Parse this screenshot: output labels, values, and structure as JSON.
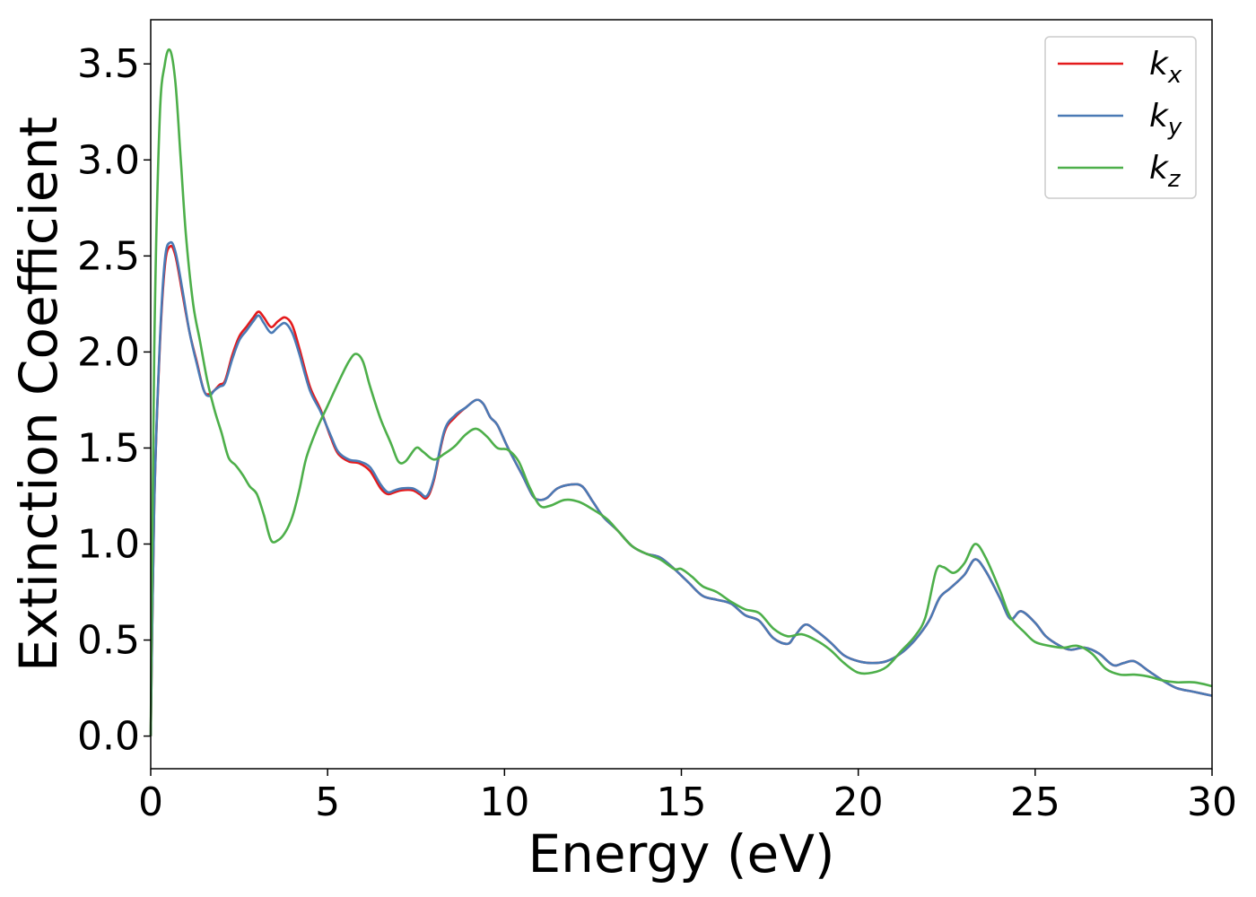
{
  "chart_data": {
    "type": "line",
    "xlabel": "Energy (eV)",
    "ylabel": "Extinction Coefficient",
    "xlim": [
      0,
      30
    ],
    "ylim": [
      -0.17,
      3.73
    ],
    "xticks": [
      "0",
      "5",
      "10",
      "15",
      "20",
      "25",
      "30"
    ],
    "yticks": [
      "0.0",
      "0.5",
      "1.0",
      "1.5",
      "2.0",
      "2.5",
      "3.0",
      "3.5"
    ],
    "grid": false,
    "legend_position": "top-right",
    "series": [
      {
        "name": "k",
        "subscript": "x",
        "color": "#e41a1c",
        "points": [
          [
            0,
            0.0
          ],
          [
            0.1,
            1.2
          ],
          [
            0.25,
            2.0
          ],
          [
            0.4,
            2.45
          ],
          [
            0.55,
            2.55
          ],
          [
            0.7,
            2.5
          ],
          [
            0.9,
            2.3
          ],
          [
            1.1,
            2.1
          ],
          [
            1.3,
            1.95
          ],
          [
            1.5,
            1.8
          ],
          [
            1.65,
            1.78
          ],
          [
            1.8,
            1.8
          ],
          [
            1.95,
            1.83
          ],
          [
            2.1,
            1.85
          ],
          [
            2.3,
            1.98
          ],
          [
            2.5,
            2.08
          ],
          [
            2.7,
            2.13
          ],
          [
            2.9,
            2.18
          ],
          [
            3.05,
            2.21
          ],
          [
            3.2,
            2.18
          ],
          [
            3.4,
            2.13
          ],
          [
            3.6,
            2.16
          ],
          [
            3.8,
            2.18
          ],
          [
            4.0,
            2.14
          ],
          [
            4.2,
            2.02
          ],
          [
            4.5,
            1.82
          ],
          [
            4.8,
            1.7
          ],
          [
            5.1,
            1.55
          ],
          [
            5.3,
            1.47
          ],
          [
            5.6,
            1.43
          ],
          [
            5.9,
            1.42
          ],
          [
            6.2,
            1.38
          ],
          [
            6.5,
            1.29
          ],
          [
            6.7,
            1.26
          ],
          [
            6.9,
            1.27
          ],
          [
            7.1,
            1.28
          ],
          [
            7.4,
            1.28
          ],
          [
            7.6,
            1.26
          ],
          [
            7.8,
            1.24
          ],
          [
            8.0,
            1.33
          ],
          [
            8.3,
            1.58
          ],
          [
            8.6,
            1.66
          ],
          [
            8.9,
            1.71
          ],
          [
            9.2,
            1.75
          ],
          [
            9.4,
            1.73
          ],
          [
            9.6,
            1.66
          ],
          [
            9.8,
            1.62
          ],
          [
            10.1,
            1.5
          ],
          [
            10.5,
            1.36
          ],
          [
            10.8,
            1.25
          ],
          [
            11.0,
            1.23
          ],
          [
            11.2,
            1.24
          ],
          [
            11.5,
            1.29
          ],
          [
            11.9,
            1.31
          ],
          [
            12.2,
            1.3
          ],
          [
            12.5,
            1.22
          ],
          [
            12.8,
            1.14
          ],
          [
            13.2,
            1.07
          ],
          [
            13.6,
            0.99
          ],
          [
            14.0,
            0.95
          ],
          [
            14.4,
            0.93
          ],
          [
            14.8,
            0.87
          ],
          [
            15.2,
            0.8
          ],
          [
            15.6,
            0.73
          ],
          [
            16.0,
            0.71
          ],
          [
            16.4,
            0.69
          ],
          [
            16.8,
            0.63
          ],
          [
            17.2,
            0.6
          ],
          [
            17.6,
            0.51
          ],
          [
            18.0,
            0.48
          ],
          [
            18.2,
            0.52
          ],
          [
            18.5,
            0.58
          ],
          [
            18.8,
            0.55
          ],
          [
            19.2,
            0.49
          ],
          [
            19.6,
            0.42
          ],
          [
            20.0,
            0.39
          ],
          [
            20.4,
            0.38
          ],
          [
            20.8,
            0.39
          ],
          [
            21.2,
            0.43
          ],
          [
            21.6,
            0.5
          ],
          [
            22.0,
            0.6
          ],
          [
            22.3,
            0.72
          ],
          [
            22.6,
            0.77
          ],
          [
            23.0,
            0.84
          ],
          [
            23.3,
            0.92
          ],
          [
            23.6,
            0.86
          ],
          [
            24.0,
            0.72
          ],
          [
            24.3,
            0.61
          ],
          [
            24.6,
            0.65
          ],
          [
            25.0,
            0.59
          ],
          [
            25.3,
            0.52
          ],
          [
            25.7,
            0.47
          ],
          [
            26.0,
            0.45
          ],
          [
            26.4,
            0.46
          ],
          [
            26.8,
            0.43
          ],
          [
            27.2,
            0.37
          ],
          [
            27.5,
            0.38
          ],
          [
            27.8,
            0.39
          ],
          [
            28.2,
            0.34
          ],
          [
            28.6,
            0.29
          ],
          [
            29.0,
            0.25
          ],
          [
            29.5,
            0.23
          ],
          [
            30.0,
            0.21
          ]
        ]
      },
      {
        "name": "k",
        "subscript": "y",
        "color": "#4a7ab5",
        "points": [
          [
            0,
            0.0
          ],
          [
            0.1,
            1.2
          ],
          [
            0.25,
            2.02
          ],
          [
            0.4,
            2.48
          ],
          [
            0.55,
            2.57
          ],
          [
            0.7,
            2.52
          ],
          [
            0.9,
            2.32
          ],
          [
            1.1,
            2.1
          ],
          [
            1.3,
            1.94
          ],
          [
            1.5,
            1.8
          ],
          [
            1.65,
            1.77
          ],
          [
            1.8,
            1.8
          ],
          [
            1.95,
            1.82
          ],
          [
            2.1,
            1.84
          ],
          [
            2.3,
            1.96
          ],
          [
            2.5,
            2.06
          ],
          [
            2.7,
            2.11
          ],
          [
            2.9,
            2.16
          ],
          [
            3.05,
            2.19
          ],
          [
            3.2,
            2.15
          ],
          [
            3.4,
            2.1
          ],
          [
            3.6,
            2.13
          ],
          [
            3.8,
            2.15
          ],
          [
            4.0,
            2.1
          ],
          [
            4.2,
            1.99
          ],
          [
            4.5,
            1.8
          ],
          [
            4.8,
            1.69
          ],
          [
            5.1,
            1.56
          ],
          [
            5.3,
            1.48
          ],
          [
            5.6,
            1.44
          ],
          [
            5.9,
            1.43
          ],
          [
            6.2,
            1.4
          ],
          [
            6.5,
            1.31
          ],
          [
            6.7,
            1.27
          ],
          [
            6.9,
            1.28
          ],
          [
            7.1,
            1.29
          ],
          [
            7.4,
            1.29
          ],
          [
            7.6,
            1.27
          ],
          [
            7.8,
            1.25
          ],
          [
            8.0,
            1.34
          ],
          [
            8.3,
            1.59
          ],
          [
            8.6,
            1.67
          ],
          [
            8.9,
            1.71
          ],
          [
            9.2,
            1.75
          ],
          [
            9.4,
            1.73
          ],
          [
            9.6,
            1.66
          ],
          [
            9.8,
            1.62
          ],
          [
            10.1,
            1.5
          ],
          [
            10.5,
            1.36
          ],
          [
            10.8,
            1.25
          ],
          [
            11.0,
            1.23
          ],
          [
            11.2,
            1.24
          ],
          [
            11.5,
            1.29
          ],
          [
            11.9,
            1.31
          ],
          [
            12.2,
            1.3
          ],
          [
            12.5,
            1.22
          ],
          [
            12.8,
            1.14
          ],
          [
            13.2,
            1.07
          ],
          [
            13.6,
            0.99
          ],
          [
            14.0,
            0.95
          ],
          [
            14.4,
            0.93
          ],
          [
            14.8,
            0.87
          ],
          [
            15.2,
            0.8
          ],
          [
            15.6,
            0.73
          ],
          [
            16.0,
            0.71
          ],
          [
            16.4,
            0.69
          ],
          [
            16.8,
            0.63
          ],
          [
            17.2,
            0.6
          ],
          [
            17.6,
            0.51
          ],
          [
            18.0,
            0.48
          ],
          [
            18.2,
            0.52
          ],
          [
            18.5,
            0.58
          ],
          [
            18.8,
            0.55
          ],
          [
            19.2,
            0.49
          ],
          [
            19.6,
            0.42
          ],
          [
            20.0,
            0.39
          ],
          [
            20.4,
            0.38
          ],
          [
            20.8,
            0.39
          ],
          [
            21.2,
            0.43
          ],
          [
            21.6,
            0.5
          ],
          [
            22.0,
            0.6
          ],
          [
            22.3,
            0.72
          ],
          [
            22.6,
            0.77
          ],
          [
            23.0,
            0.84
          ],
          [
            23.3,
            0.92
          ],
          [
            23.6,
            0.86
          ],
          [
            24.0,
            0.72
          ],
          [
            24.3,
            0.61
          ],
          [
            24.6,
            0.65
          ],
          [
            25.0,
            0.59
          ],
          [
            25.3,
            0.52
          ],
          [
            25.7,
            0.47
          ],
          [
            26.0,
            0.45
          ],
          [
            26.4,
            0.46
          ],
          [
            26.8,
            0.43
          ],
          [
            27.2,
            0.37
          ],
          [
            27.5,
            0.38
          ],
          [
            27.8,
            0.39
          ],
          [
            28.2,
            0.34
          ],
          [
            28.6,
            0.29
          ],
          [
            29.0,
            0.25
          ],
          [
            29.5,
            0.23
          ],
          [
            30.0,
            0.21
          ]
        ]
      },
      {
        "name": "k",
        "subscript": "z",
        "color": "#4daf4a",
        "points": [
          [
            0,
            0.0
          ],
          [
            0.1,
            2.0
          ],
          [
            0.25,
            3.2
          ],
          [
            0.4,
            3.5
          ],
          [
            0.55,
            3.57
          ],
          [
            0.7,
            3.4
          ],
          [
            0.85,
            3.0
          ],
          [
            1.0,
            2.6
          ],
          [
            1.2,
            2.25
          ],
          [
            1.4,
            2.05
          ],
          [
            1.6,
            1.85
          ],
          [
            1.8,
            1.7
          ],
          [
            2.0,
            1.58
          ],
          [
            2.2,
            1.45
          ],
          [
            2.4,
            1.41
          ],
          [
            2.6,
            1.36
          ],
          [
            2.8,
            1.3
          ],
          [
            3.0,
            1.26
          ],
          [
            3.2,
            1.15
          ],
          [
            3.4,
            1.02
          ],
          [
            3.6,
            1.02
          ],
          [
            3.8,
            1.06
          ],
          [
            4.0,
            1.14
          ],
          [
            4.2,
            1.28
          ],
          [
            4.4,
            1.45
          ],
          [
            4.7,
            1.6
          ],
          [
            5.0,
            1.72
          ],
          [
            5.3,
            1.84
          ],
          [
            5.6,
            1.95
          ],
          [
            5.8,
            1.99
          ],
          [
            6.0,
            1.95
          ],
          [
            6.2,
            1.82
          ],
          [
            6.5,
            1.65
          ],
          [
            6.8,
            1.52
          ],
          [
            7.0,
            1.43
          ],
          [
            7.2,
            1.43
          ],
          [
            7.5,
            1.5
          ],
          [
            7.7,
            1.48
          ],
          [
            8.0,
            1.44
          ],
          [
            8.3,
            1.47
          ],
          [
            8.6,
            1.51
          ],
          [
            8.9,
            1.57
          ],
          [
            9.2,
            1.6
          ],
          [
            9.5,
            1.56
          ],
          [
            9.8,
            1.5
          ],
          [
            10.1,
            1.49
          ],
          [
            10.4,
            1.43
          ],
          [
            10.7,
            1.3
          ],
          [
            11.0,
            1.2
          ],
          [
            11.3,
            1.2
          ],
          [
            11.7,
            1.23
          ],
          [
            12.1,
            1.22
          ],
          [
            12.5,
            1.18
          ],
          [
            12.9,
            1.13
          ],
          [
            13.2,
            1.07
          ],
          [
            13.6,
            0.99
          ],
          [
            14.0,
            0.95
          ],
          [
            14.4,
            0.92
          ],
          [
            14.8,
            0.87
          ],
          [
            15.0,
            0.87
          ],
          [
            15.3,
            0.83
          ],
          [
            15.6,
            0.78
          ],
          [
            16.0,
            0.75
          ],
          [
            16.4,
            0.7
          ],
          [
            16.8,
            0.66
          ],
          [
            17.2,
            0.64
          ],
          [
            17.6,
            0.56
          ],
          [
            18.0,
            0.52
          ],
          [
            18.4,
            0.53
          ],
          [
            18.8,
            0.5
          ],
          [
            19.2,
            0.45
          ],
          [
            19.6,
            0.38
          ],
          [
            20.0,
            0.33
          ],
          [
            20.4,
            0.33
          ],
          [
            20.8,
            0.36
          ],
          [
            21.2,
            0.44
          ],
          [
            21.6,
            0.52
          ],
          [
            21.9,
            0.62
          ],
          [
            22.2,
            0.86
          ],
          [
            22.4,
            0.88
          ],
          [
            22.7,
            0.85
          ],
          [
            23.0,
            0.9
          ],
          [
            23.3,
            1.0
          ],
          [
            23.6,
            0.93
          ],
          [
            24.0,
            0.76
          ],
          [
            24.3,
            0.62
          ],
          [
            24.7,
            0.54
          ],
          [
            25.0,
            0.49
          ],
          [
            25.4,
            0.47
          ],
          [
            25.8,
            0.46
          ],
          [
            26.2,
            0.47
          ],
          [
            26.6,
            0.43
          ],
          [
            27.0,
            0.35
          ],
          [
            27.4,
            0.32
          ],
          [
            27.8,
            0.32
          ],
          [
            28.2,
            0.31
          ],
          [
            28.6,
            0.29
          ],
          [
            29.0,
            0.28
          ],
          [
            29.5,
            0.28
          ],
          [
            30.0,
            0.26
          ]
        ]
      }
    ]
  }
}
